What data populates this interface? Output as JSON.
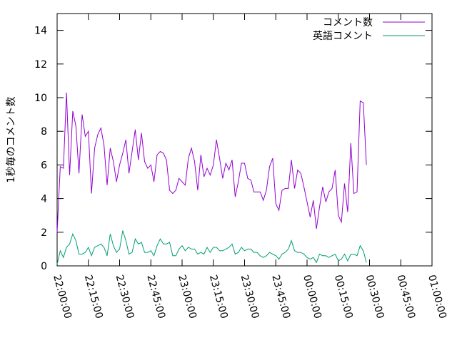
{
  "chart_data": {
    "type": "line",
    "title": "",
    "xlabel": "",
    "ylabel": "1秒毎のコメント数",
    "ylim": [
      0,
      15
    ],
    "yticks": [
      0,
      2,
      4,
      6,
      8,
      10,
      12,
      14
    ],
    "xlim": [
      "22:00:00",
      "01:00:00"
    ],
    "xtick_labels": [
      "22:00:00",
      "22:15:00",
      "22:30:00",
      "22:45:00",
      "23:00:00",
      "23:15:00",
      "23:30:00",
      "23:45:00",
      "00:00:00",
      "00:15:00",
      "00:30:00",
      "00:45:00",
      "01:00:00"
    ],
    "grid": false,
    "legend": "top-right",
    "x_sampling_interval": "00:01:30",
    "series": [
      {
        "name": "コメント数",
        "color": "#9400d3",
        "values": [
          2.0,
          5.9,
          5.8,
          10.3,
          5.4,
          9.2,
          8.3,
          5.5,
          9.0,
          7.7,
          8.0,
          4.3,
          7.0,
          7.8,
          8.2,
          7.2,
          4.8,
          7.0,
          6.2,
          5.0,
          6.0,
          6.7,
          7.5,
          5.5,
          6.8,
          8.1,
          6.3,
          7.9,
          6.2,
          5.8,
          6.0,
          5.0,
          6.6,
          6.8,
          6.7,
          6.3,
          4.5,
          4.3,
          4.5,
          5.2,
          5.0,
          4.8,
          6.4,
          7.0,
          6.2,
          4.5,
          6.6,
          5.3,
          5.8,
          5.4,
          6.0,
          7.5,
          6.4,
          5.2,
          6.1,
          5.7,
          6.3,
          4.1,
          5.0,
          6.1,
          6.1,
          5.2,
          5.1,
          4.4,
          4.4,
          4.4,
          3.9,
          4.5,
          5.9,
          6.4,
          3.7,
          3.3,
          4.5,
          4.6,
          4.6,
          6.3,
          4.6,
          5.7,
          5.5,
          4.7,
          3.8,
          2.9,
          3.9,
          2.2,
          3.5,
          4.7,
          3.8,
          4.4,
          4.6,
          5.7,
          3.0,
          2.6,
          4.9,
          3.2,
          7.3,
          4.3,
          4.4,
          9.8,
          9.7,
          6.0
        ]
      },
      {
        "name": "英語コメント",
        "color": "#009e73",
        "values": [
          0.1,
          0.9,
          0.5,
          1.1,
          1.3,
          1.9,
          1.5,
          0.7,
          0.7,
          0.8,
          1.1,
          0.6,
          1.1,
          1.2,
          1.3,
          1.1,
          0.6,
          1.9,
          1.2,
          0.8,
          1.0,
          2.1,
          1.5,
          0.7,
          0.8,
          1.6,
          1.3,
          1.4,
          0.8,
          0.8,
          0.9,
          0.6,
          1.2,
          1.6,
          1.3,
          1.3,
          1.4,
          0.6,
          0.6,
          1.0,
          1.2,
          0.9,
          1.1,
          1.0,
          1.0,
          0.7,
          0.8,
          0.7,
          1.1,
          0.8,
          1.1,
          1.1,
          0.9,
          0.9,
          1.0,
          1.1,
          1.3,
          0.7,
          0.8,
          1.1,
          0.9,
          1.0,
          1.0,
          0.8,
          0.8,
          0.6,
          0.5,
          0.6,
          0.8,
          0.7,
          0.6,
          0.4,
          0.7,
          0.8,
          1.0,
          1.5,
          0.9,
          0.8,
          0.8,
          0.7,
          0.5,
          0.4,
          0.5,
          0.2,
          0.7,
          0.6,
          0.6,
          0.5,
          0.6,
          0.7,
          0.3,
          0.4,
          0.7,
          0.3,
          0.7,
          0.7,
          0.6,
          1.2,
          0.9,
          0.2
        ]
      }
    ]
  }
}
